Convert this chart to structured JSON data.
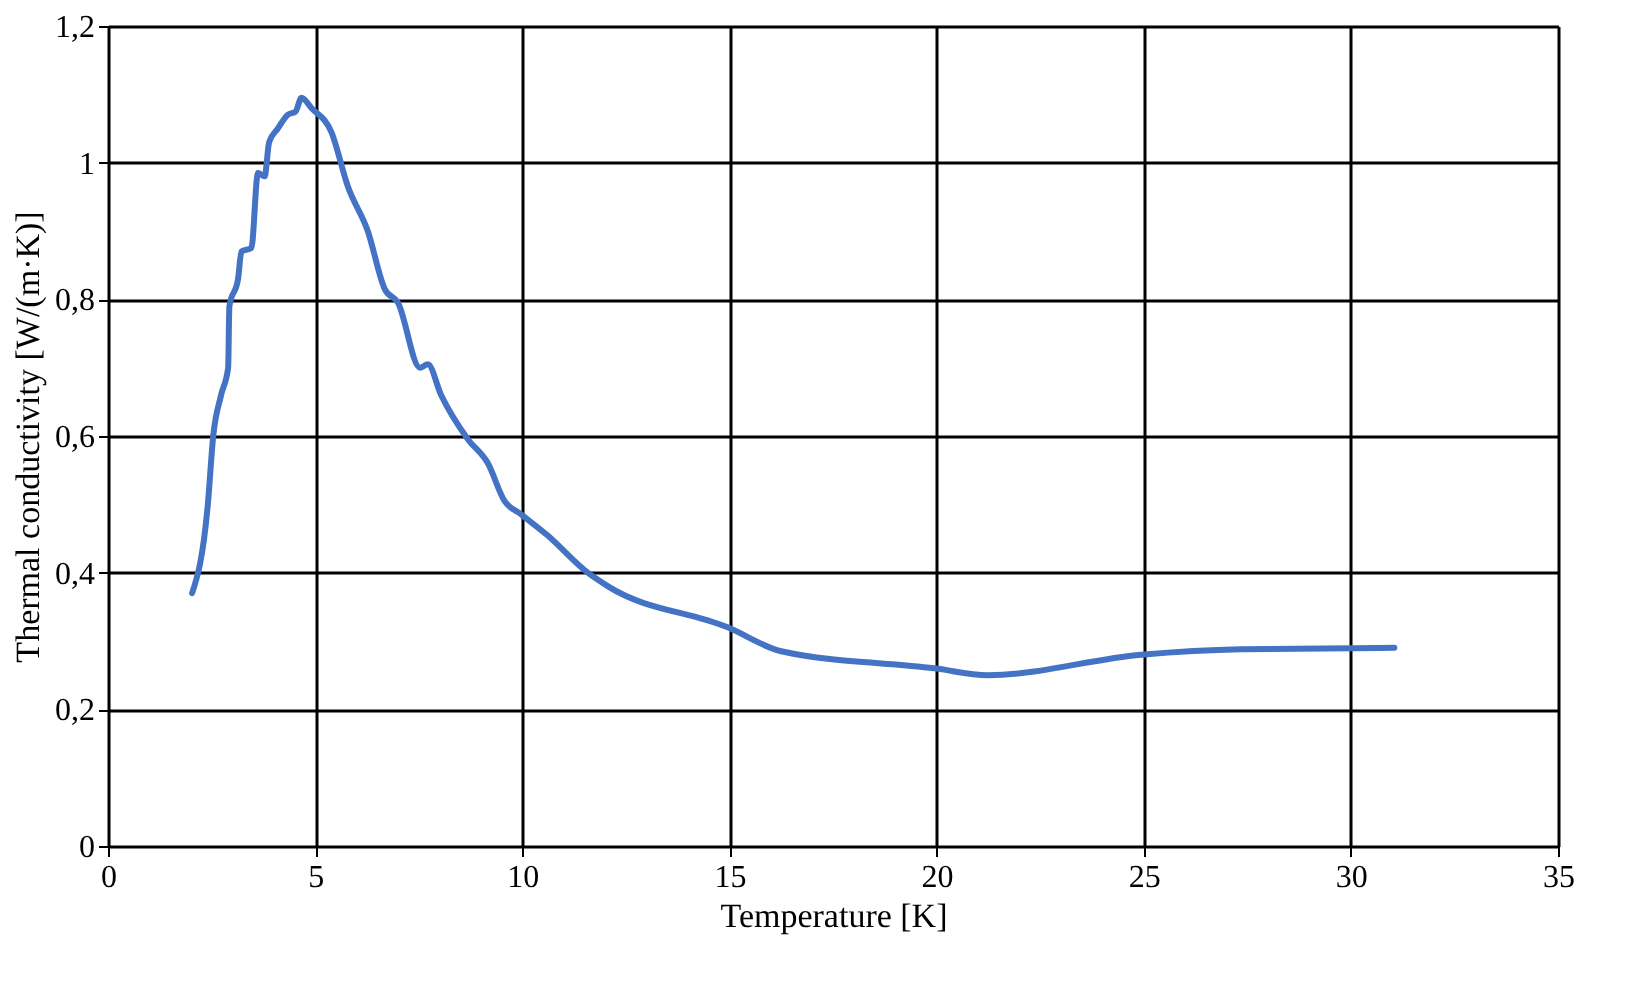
{
  "chart_data": {
    "type": "line",
    "xlabel": "Temperature [K]",
    "ylabel": "Thermal conductivity [W/(m·K)]",
    "xlim": [
      0,
      35
    ],
    "xticks": [
      0,
      5,
      10,
      15,
      20,
      25,
      30,
      35
    ],
    "ylim": [
      0,
      1.2
    ],
    "yticks": [
      0,
      {
        "value": 0.2,
        "label": "0,2"
      },
      {
        "value": 0.4,
        "label": "0,4"
      },
      {
        "value": 0.6,
        "label": "0,6"
      },
      {
        "value": 0.8,
        "label": "0,8"
      },
      1,
      {
        "value": 1.2,
        "label": "1,2"
      }
    ],
    "grid": true,
    "marker": "none",
    "line_style": "solid",
    "legend": false,
    "series": [
      {
        "color": "#4472c4",
        "x": [
          2.03,
          2.41,
          2.54,
          2.73,
          2.9,
          2.93,
          3.14,
          3.22,
          3.46,
          3.62,
          3.78,
          3.89,
          4.1,
          4.34,
          4.53,
          4.67,
          4.91,
          5.39,
          5.79,
          6.27,
          6.68,
          7.0,
          7.53,
          7.72,
          8.04,
          8.69,
          9.17,
          9.57,
          9.98,
          10.6,
          11.58,
          12.07,
          14.96,
          16.25,
          19.95,
          21.24,
          24.94,
          27.35,
          31.05
        ],
        "values": [
          0.37,
          0.5,
          0.6,
          0.66,
          0.7,
          0.79,
          0.83,
          0.87,
          0.875,
          0.985,
          0.98,
          1.03,
          1.05,
          1.07,
          1.075,
          1.095,
          1.08,
          1.045,
          0.965,
          0.9,
          0.815,
          0.795,
          0.7,
          0.705,
          0.66,
          0.595,
          0.56,
          0.505,
          0.485,
          0.455,
          0.4,
          0.38,
          0.32,
          0.285,
          0.26,
          0.25,
          0.28,
          0.288,
          0.29
        ]
      }
    ]
  }
}
